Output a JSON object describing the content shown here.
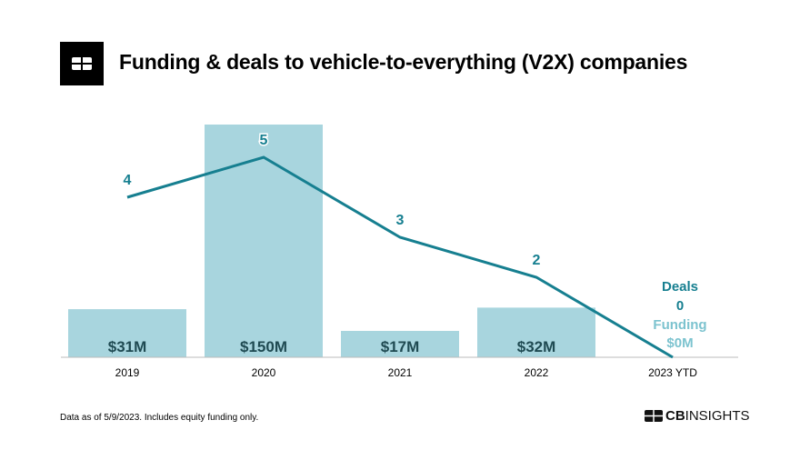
{
  "title": "Funding & deals to vehicle-to-everything (V2X) companies",
  "footnote": "Data as of 5/9/2023. Includes equity funding only.",
  "brand": {
    "bold": "CB",
    "light": "INSIGHTS"
  },
  "colors": {
    "bar": "#a8d5de",
    "line": "#167f90",
    "funding_label": "#7cc3cf",
    "bar_label": "#1f4a52"
  },
  "chart_data": {
    "type": "bar+line",
    "categories": [
      "2019",
      "2020",
      "2021",
      "2022",
      "2023 YTD"
    ],
    "series": [
      {
        "name": "Funding",
        "kind": "bar",
        "values": [
          31,
          150,
          17,
          32,
          0
        ],
        "labels": [
          "$31M",
          "$150M",
          "$17M",
          "$32M",
          "$0M"
        ]
      },
      {
        "name": "Deals",
        "kind": "line",
        "values": [
          4,
          5,
          3,
          2,
          0
        ],
        "labels": [
          "4",
          "5",
          "3",
          "2",
          "0"
        ]
      }
    ],
    "annotation": {
      "deals_label": "Deals",
      "deals_value": "0",
      "funding_label": "Funding",
      "funding_value": "$0M"
    }
  }
}
